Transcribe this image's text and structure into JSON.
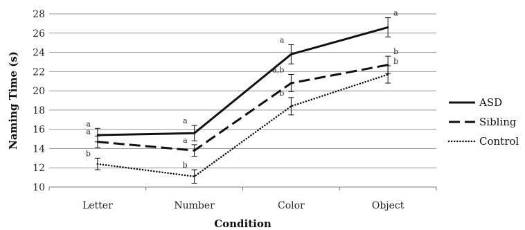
{
  "chart_data": {
    "type": "line",
    "title": "",
    "xlabel": "Condition",
    "ylabel": "Naming Time (s)",
    "categories": [
      "Letter",
      "Number",
      "Color",
      "Object"
    ],
    "ylim": [
      10,
      28
    ],
    "yticks": [
      10,
      12,
      14,
      16,
      18,
      20,
      22,
      24,
      26,
      28
    ],
    "grid": true,
    "legend_position": "right",
    "series": [
      {
        "name": "ASD",
        "style": "solid",
        "values": [
          15.4,
          15.6,
          23.8,
          26.6
        ],
        "errors": [
          0.7,
          0.8,
          1.0,
          1.0
        ],
        "letters": [
          "a",
          "a",
          "a",
          "a"
        ]
      },
      {
        "name": "Sibling",
        "style": "dashed",
        "values": [
          14.7,
          13.8,
          20.8,
          22.7
        ],
        "errors": [
          0.6,
          0.6,
          0.9,
          0.9
        ],
        "letters": [
          "a",
          "a",
          "a,b",
          "b"
        ]
      },
      {
        "name": "Control",
        "style": "dotted",
        "values": [
          12.4,
          11.1,
          18.4,
          21.7
        ],
        "errors": [
          0.6,
          0.7,
          0.9,
          0.9
        ],
        "letters": [
          "b",
          "b",
          "b",
          "b"
        ]
      }
    ]
  }
}
